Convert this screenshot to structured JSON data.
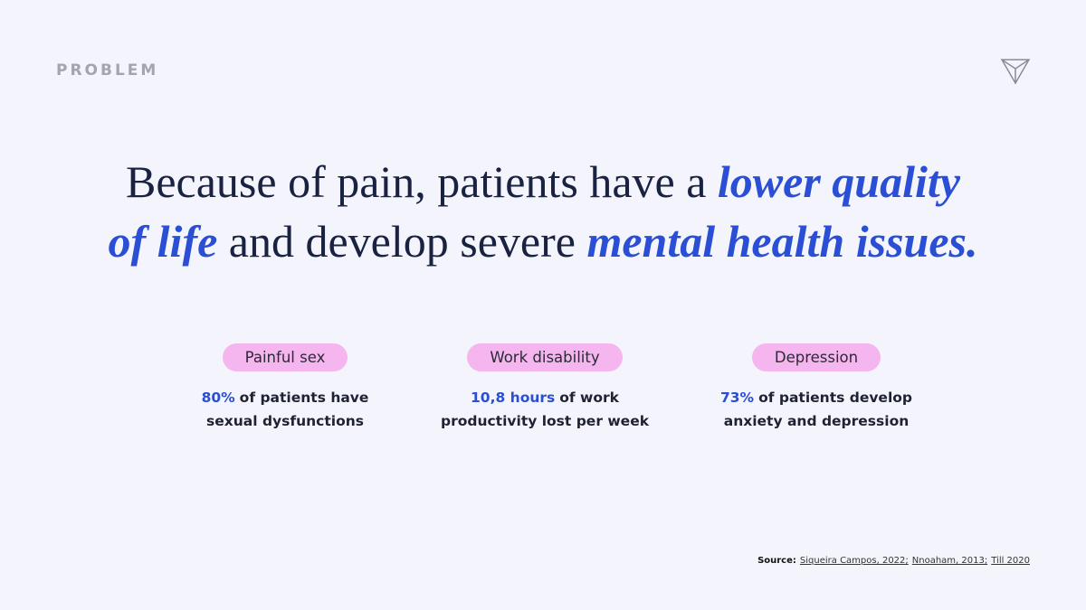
{
  "header": {
    "label": "PROBLEM"
  },
  "headline": {
    "lines": [
      [
        {
          "text": "Because of pain, patients have a ",
          "emphasis": false
        },
        {
          "text": "lower quality",
          "emphasis": true
        }
      ],
      [
        {
          "text": "of life",
          "emphasis": true
        },
        {
          "text": " and develop severe ",
          "emphasis": false
        },
        {
          "text": "mental health issues.",
          "emphasis": true
        }
      ]
    ]
  },
  "stats": [
    {
      "tag": "Painful sex",
      "highlight": "80%",
      "line1": "of patients have",
      "line2": "sexual dysfunctions"
    },
    {
      "tag": "Work disability",
      "highlight": "10,8 hours",
      "line1": "of work",
      "line2": "productivity lost per week"
    },
    {
      "tag": "Depression",
      "highlight": "73%",
      "line1": "of patients develop",
      "line2": "anxiety and depression"
    }
  ],
  "source": {
    "label": "Source:",
    "refs": [
      "Siqueira Campos, 2022;",
      "Nnoaham, 2013;",
      "Till 2020"
    ]
  }
}
